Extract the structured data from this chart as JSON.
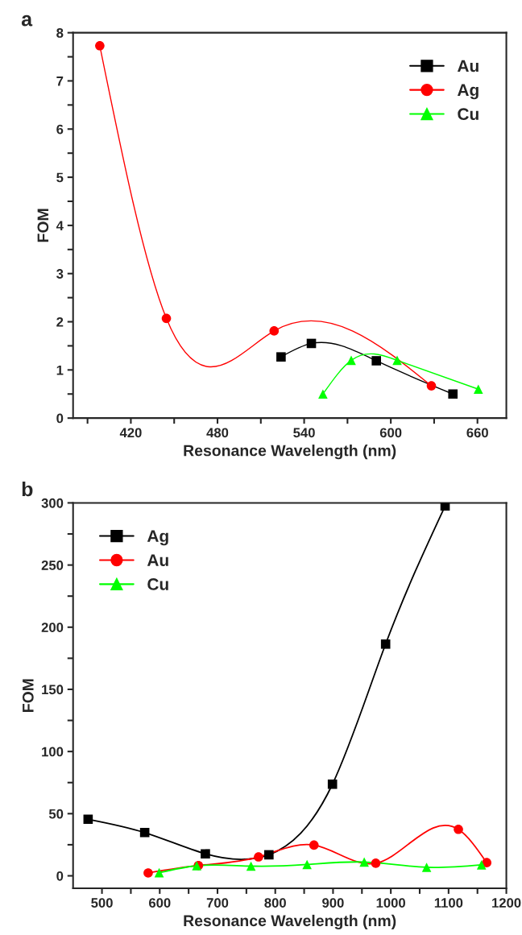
{
  "chart_data": [
    {
      "type": "line",
      "title": "a",
      "xlabel": "Resonance Wavelength (nm)",
      "ylabel": "FOM",
      "xlim": [
        380,
        680
      ],
      "ylim": [
        0,
        8
      ],
      "xticks": [
        {
          "value": 390,
          "label": null
        },
        420,
        {
          "value": 450,
          "label": null
        },
        480,
        {
          "value": 510,
          "label": null
        },
        540,
        {
          "value": 570,
          "label": null
        },
        600,
        {
          "value": 630,
          "label": null
        },
        660
      ],
      "yticks": [
        0,
        {
          "value": 0.5,
          "label": null
        },
        1,
        {
          "value": 1.5,
          "label": null
        },
        2,
        {
          "value": 2.5,
          "label": null
        },
        3,
        {
          "value": 3.5,
          "label": null
        },
        4,
        {
          "value": 4.5,
          "label": null
        },
        5,
        {
          "value": 5.5,
          "label": null
        },
        6,
        {
          "value": 6.5,
          "label": null
        },
        7,
        {
          "value": 7.5,
          "label": null
        },
        8
      ],
      "legend": "top right",
      "grid": false,
      "series": [
        {
          "name": "Au",
          "color": "#000000",
          "marker": "square",
          "x": [
            524,
            545,
            590,
            643
          ],
          "values": [
            1.27,
            1.55,
            1.19,
            0.5
          ]
        },
        {
          "name": "Ag",
          "color": "#ff0000",
          "marker": "circle",
          "x": [
            398.5,
            444.6,
            519.2,
            628.1
          ],
          "values": [
            7.73,
            2.07,
            1.81,
            0.67
          ]
        },
        {
          "name": "Cu",
          "color": "#00ff00",
          "marker": "triangle",
          "x": [
            553,
            572.6,
            604.4,
            660.6
          ],
          "values": [
            0.5,
            1.2,
            1.2,
            0.6
          ]
        }
      ]
    },
    {
      "type": "line",
      "title": "b",
      "xlabel": "Resonance Wavelength (nm)",
      "ylabel": "FOM",
      "xlim": [
        450,
        1200
      ],
      "ylim": [
        -10,
        300
      ],
      "xticks": [
        500,
        {
          "value": 550,
          "label": null
        },
        600,
        {
          "value": 650,
          "label": null
        },
        700,
        {
          "value": 750,
          "label": null
        },
        800,
        {
          "value": 850,
          "label": null
        },
        900,
        {
          "value": 950,
          "label": null
        },
        1000,
        {
          "value": 1050,
          "label": null
        },
        1100,
        {
          "value": 1150,
          "label": null
        },
        1200
      ],
      "yticks": [
        0,
        {
          "value": 25,
          "label": null
        },
        50,
        {
          "value": 75,
          "label": null
        },
        100,
        {
          "value": 125,
          "label": null
        },
        150,
        {
          "value": 175,
          "label": null
        },
        200,
        {
          "value": 225,
          "label": null
        },
        250,
        {
          "value": 275,
          "label": null
        },
        300
      ],
      "legend": "top left",
      "grid": false,
      "series": [
        {
          "name": "Ag",
          "color": "#000000",
          "marker": "square",
          "x": [
            476,
            574,
            679,
            789,
            899,
            991,
            1094
          ],
          "values": [
            45.5,
            34.8,
            17.7,
            16.9,
            73.7,
            186.4,
            297.5
          ]
        },
        {
          "name": "Au",
          "color": "#ff0000",
          "marker": "circle",
          "x": [
            580,
            667,
            771,
            867,
            974,
            1117,
            1166
          ],
          "values": [
            2.3,
            8.3,
            15.2,
            24.7,
            10.1,
            37.4,
            10.6
          ]
        },
        {
          "name": "Cu",
          "color": "#00ff00",
          "marker": "triangle",
          "x": [
            599,
            664,
            758,
            855,
            954,
            1062,
            1157
          ],
          "values": [
            2.5,
            8.1,
            7.8,
            9.1,
            11.1,
            6.8,
            8.8
          ]
        }
      ]
    }
  ]
}
